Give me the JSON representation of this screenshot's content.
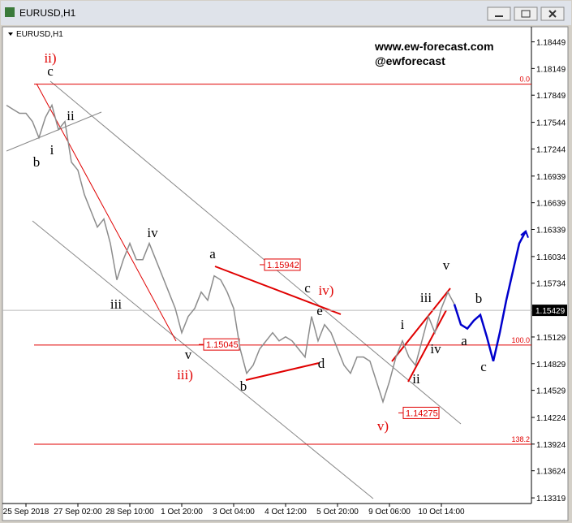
{
  "window_title": "EURUSD,H1",
  "chart_data": {
    "type": "line",
    "title": "EURUSD,H1",
    "watermark": [
      "www.ew-forecast.com",
      "@ewforecast"
    ],
    "categories": [
      null,
      null,
      null,
      "25 Sep 2018",
      null,
      null,
      null,
      null,
      null,
      null,
      null,
      "27 Sep 02:00",
      null,
      null,
      null,
      null,
      null,
      null,
      null,
      "28 Sep 10:00",
      null,
      null,
      null,
      null,
      null,
      null,
      null,
      "1 Oct 20:00",
      null,
      null,
      null,
      null,
      null,
      null,
      null,
      "3 Oct 04:00",
      null,
      null,
      null,
      null,
      null,
      null,
      null,
      "4 Oct 12:00",
      null,
      null,
      null,
      null,
      null,
      null,
      null,
      "5 Oct 20:00",
      null,
      null,
      null,
      null,
      null,
      null,
      null,
      "9 Oct 06:00",
      null,
      null,
      null,
      null,
      null,
      null,
      null,
      "10 Oct 14:00",
      null,
      null,
      null,
      null,
      null,
      null,
      null,
      null,
      null,
      null,
      null,
      null,
      null
    ],
    "series": [
      {
        "color": "#8c8c8c",
        "values": [
          1.17736,
          1.1769,
          1.17645,
          1.17645,
          1.17553,
          1.1737,
          1.17599,
          1.17736,
          1.17462,
          1.17553,
          1.17096,
          1.17005,
          1.16731,
          1.16548,
          1.16365,
          1.16456,
          1.16182,
          1.15771,
          1.15999,
          1.16182,
          1.15999,
          1.15999,
          1.16182,
          1.15999,
          1.15817,
          1.15634,
          1.15451,
          1.15177,
          1.1536,
          1.15451,
          1.15634,
          1.15542,
          1.15817,
          1.15771,
          1.15634,
          1.15451,
          1.14994,
          1.1472,
          1.14811,
          1.14994,
          1.15085,
          1.15177,
          1.15085,
          1.15131,
          1.15085,
          1.14994,
          1.14903,
          1.1536,
          1.15085,
          1.15268,
          1.15177,
          1.14994,
          1.14811,
          1.1472,
          1.14903,
          1.14903,
          1.14857,
          1.14628,
          1.144,
          1.14628,
          1.14903,
          1.15085,
          1.14903,
          1.14811,
          1.15085,
          1.1536,
          1.15177,
          1.15451,
          1.15634,
          1.15497,
          null,
          null,
          null,
          null,
          null,
          null,
          null,
          null,
          null,
          null,
          null
        ]
      },
      {
        "color": "#0000cc",
        "values": [
          null,
          null,
          null,
          null,
          null,
          null,
          null,
          null,
          null,
          null,
          null,
          null,
          null,
          null,
          null,
          null,
          null,
          null,
          null,
          null,
          null,
          null,
          null,
          null,
          null,
          null,
          null,
          null,
          null,
          null,
          null,
          null,
          null,
          null,
          null,
          null,
          null,
          null,
          null,
          null,
          null,
          null,
          null,
          null,
          null,
          null,
          null,
          null,
          null,
          null,
          null,
          null,
          null,
          null,
          null,
          null,
          null,
          null,
          null,
          null,
          null,
          null,
          null,
          null,
          null,
          null,
          null,
          null,
          null,
          1.15497,
          1.15268,
          1.15223,
          1.15314,
          1.15378,
          1.15131,
          1.14857,
          1.15177,
          1.15542,
          1.15862,
          1.16182,
          1.16319
        ]
      }
    ],
    "ylim": [
      1.1321,
      1.186
    ],
    "yticks": [
      1.18449,
      1.18149,
      1.17849,
      1.17544,
      1.17244,
      1.16939,
      1.16639,
      1.16339,
      1.16034,
      1.15734,
      1.15129,
      1.14829,
      1.14529,
      1.14224,
      1.13924,
      1.13624,
      1.13319
    ],
    "last_price": 1.15429,
    "levels": [
      {
        "value": 1.17973,
        "label": "0.0"
      },
      {
        "value": 1.15038,
        "label": "100.0"
      },
      {
        "value": 1.13923,
        "label": "138.2"
      }
    ],
    "price_labels": [
      1.15942,
      1.15045,
      1.14275
    ],
    "annotations": [
      {
        "text": "ii)",
        "color": "#e00000"
      },
      {
        "text": "c",
        "color": "#000000"
      },
      {
        "text": "ii",
        "color": "#000000"
      },
      {
        "text": "i",
        "color": "#000000"
      },
      {
        "text": "b",
        "color": "#000000"
      },
      {
        "text": "iv",
        "color": "#000000"
      },
      {
        "text": "iii",
        "color": "#000000"
      },
      {
        "text": "v",
        "color": "#000000"
      },
      {
        "text": "iii)",
        "color": "#e00000"
      },
      {
        "text": "a",
        "color": "#000000"
      },
      {
        "text": "b",
        "color": "#000000"
      },
      {
        "text": "c",
        "color": "#000000"
      },
      {
        "text": "iv)",
        "color": "#e00000"
      },
      {
        "text": "e",
        "color": "#000000"
      },
      {
        "text": "d",
        "color": "#000000"
      },
      {
        "text": "v)",
        "color": "#e00000"
      },
      {
        "text": "i",
        "color": "#000000"
      },
      {
        "text": "iii",
        "color": "#000000"
      },
      {
        "text": "iv",
        "color": "#000000"
      },
      {
        "text": "ii",
        "color": "#000000"
      },
      {
        "text": "v",
        "color": "#000000"
      },
      {
        "text": "b",
        "color": "#000000"
      },
      {
        "text": "a",
        "color": "#000000"
      },
      {
        "text": "c",
        "color": "#000000"
      }
    ]
  }
}
